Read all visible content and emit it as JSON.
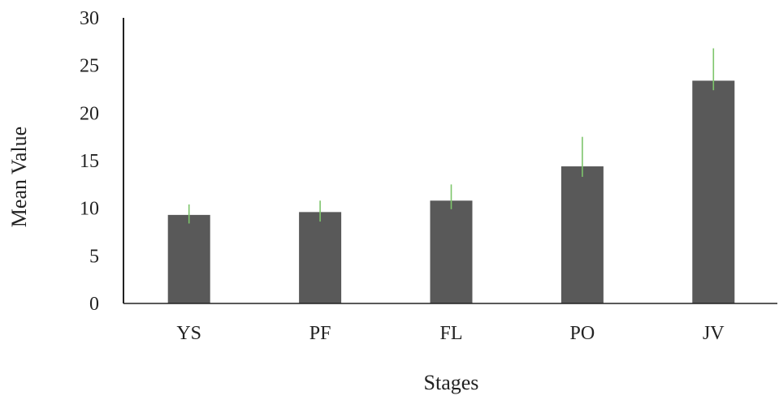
{
  "chart_data": {
    "type": "bar",
    "title": "",
    "xlabel": "Stages",
    "ylabel": "Mean Value",
    "categories": [
      "YS",
      "PF",
      "FL",
      "PO",
      "JV"
    ],
    "values": [
      9.3,
      9.6,
      10.8,
      14.4,
      23.4
    ],
    "error_low": [
      8.4,
      8.6,
      9.9,
      13.3,
      22.4
    ],
    "error_high": [
      10.4,
      10.8,
      12.5,
      17.5,
      26.8
    ],
    "ylim": [
      0,
      30
    ],
    "yticks": [
      "0",
      "5",
      "10",
      "15",
      "20",
      "25",
      "30"
    ],
    "grid": false,
    "bar_color": "#595959",
    "error_bar_color": "#7dc56b",
    "axis_color": "#222222"
  }
}
